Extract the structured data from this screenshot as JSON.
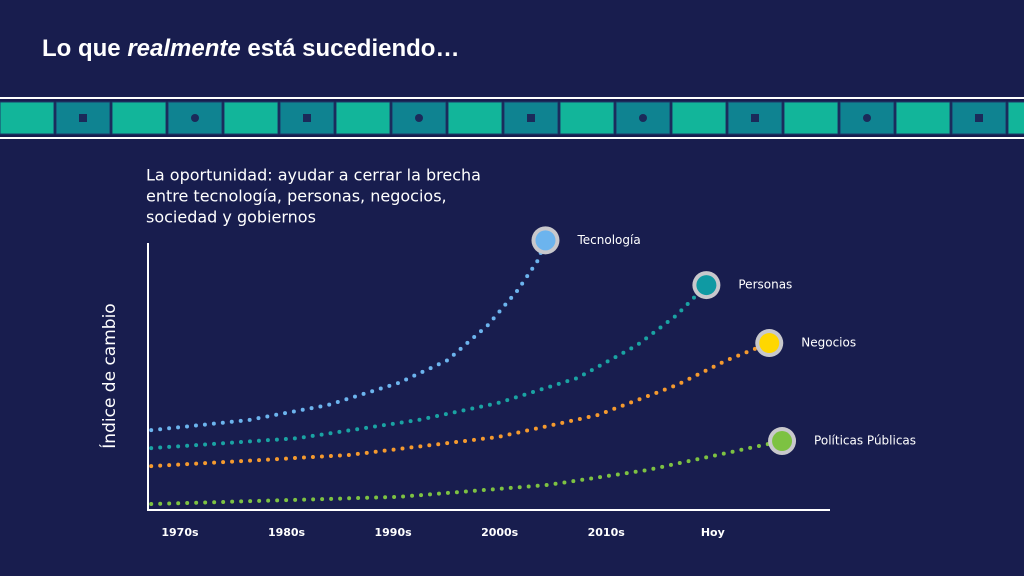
{
  "header": {
    "title": [
      "Lo que ",
      "realmente",
      " está sucediendo…"
    ]
  },
  "chart_data": {
    "type": "line",
    "subtitle": [
      "La oportunidad: ayudar a cerrar la brecha",
      "entre tecnología, personas, negocios,",
      "sociedad y gobiernos"
    ],
    "y_label": "Índice de cambio",
    "xlim": [
      1967,
      2031
    ],
    "ylim": [
      0,
      105
    ],
    "xticks": [
      {
        "value": 1970,
        "label": "1970s"
      },
      {
        "value": 1980,
        "label": "1980s"
      },
      {
        "value": 1990,
        "label": "1990s"
      },
      {
        "value": 2000,
        "label": "2000s"
      },
      {
        "value": 2010,
        "label": "2010s"
      },
      {
        "value": 2020,
        "label": "Hoy"
      }
    ],
    "series": [
      {
        "name": "Tecnología",
        "color": "#6cb4ee",
        "marker_color": "#6cb4ee",
        "x": [
          1967.3,
          1976.4,
          1983.9,
          1990.5,
          1995.1,
          1998.9,
          2001.7,
          2003.6,
          2004.3
        ],
        "values": [
          29.4,
          33.2,
          38.9,
          47.2,
          55.8,
          69.1,
          82.3,
          93.6,
          101.1
        ]
      },
      {
        "name": "Personas",
        "color": "#1aa3a3",
        "marker_color": "#0f9aa3",
        "x": [
          1967.3,
          1981.1,
          1992.3,
          1999.8,
          2007.3,
          2012.9,
          2016.6,
          2019.4
        ],
        "values": [
          22.6,
          26.4,
          33.2,
          39.6,
          49.1,
          61.5,
          72.8,
          84.2
        ]
      },
      {
        "name": "Negocios",
        "color": "#f59a2e",
        "marker_color": "#ffd700",
        "x": [
          1967.3,
          1985.8,
          1999.8,
          2009.2,
          2016.6,
          2021.3,
          2025.3
        ],
        "values": [
          15.8,
          20.0,
          26.8,
          35.1,
          46.4,
          55.8,
          62.3
        ]
      },
      {
        "name": "Políticas Públicas",
        "color": "#7dc242",
        "marker_color": "#7dc242",
        "x": [
          1967.3,
          1990.5,
          2004.5,
          2013.8,
          2020.4,
          2026.5
        ],
        "values": [
          1.5,
          4.2,
          8.7,
          14.3,
          20.0,
          25.3
        ]
      }
    ]
  }
}
